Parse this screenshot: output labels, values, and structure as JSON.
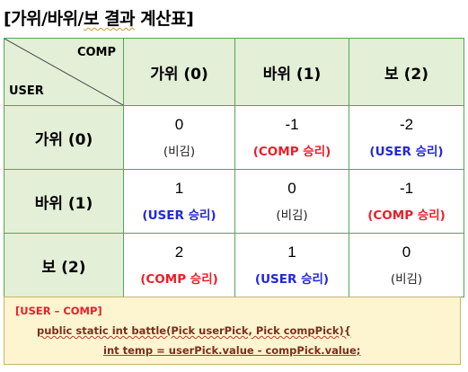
{
  "title": {
    "pre": "[가위/바위/",
    "mid": "보 결과",
    "post": " 계산표]"
  },
  "corner": {
    "comp": "COMP",
    "user": "USER"
  },
  "columns": [
    "가위 (0)",
    "바위 (1)",
    "보 (2)"
  ],
  "rows": [
    {
      "label": "가위 (0)",
      "cells": [
        {
          "value": "0",
          "result": "(비김)",
          "kind": "draw"
        },
        {
          "value": "-1",
          "result": "(COMP 승리)",
          "kind": "comp"
        },
        {
          "value": "-2",
          "result": "(USER 승리)",
          "kind": "user"
        }
      ]
    },
    {
      "label": "바위 (1)",
      "cells": [
        {
          "value": "1",
          "result": "(USER 승리)",
          "kind": "user"
        },
        {
          "value": "0",
          "result": "(비김)",
          "kind": "draw"
        },
        {
          "value": "-1",
          "result": "(COMP 승리)",
          "kind": "comp"
        }
      ]
    },
    {
      "label": "보 (2)",
      "cells": [
        {
          "value": "2",
          "result": "(COMP 승리)",
          "kind": "comp"
        },
        {
          "value": "1",
          "result": "(USER 승리)",
          "kind": "user"
        },
        {
          "value": "0",
          "result": "(비김)",
          "kind": "draw"
        }
      ]
    }
  ],
  "code": {
    "line1": "[USER – COMP]",
    "line2": "public static int battle(Pick userPick, Pick compPick){",
    "line3": "int temp = userPick.value - compPick.value;"
  },
  "colors": {
    "grid": "#52a65a",
    "header_bg": "#e3efd6",
    "comp_win": "#e8202a",
    "user_win": "#2228d8",
    "code_bg": "#fdf4d0"
  }
}
